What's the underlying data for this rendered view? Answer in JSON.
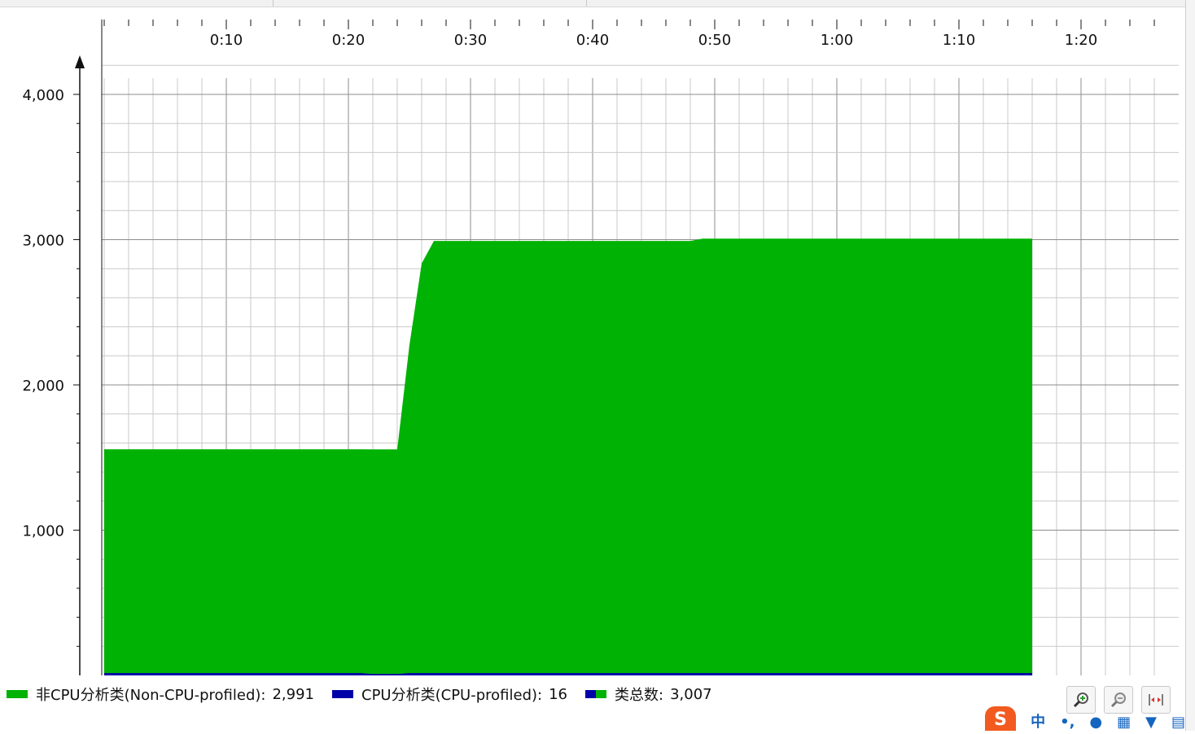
{
  "colors": {
    "non_cpu": "#00b204",
    "cpu": "#0000a8",
    "grid_major": "#8c8c8c",
    "grid_minor": "#c9c9c9"
  },
  "chart_data": {
    "type": "area",
    "stacked": true,
    "x_unit": "m:ss",
    "xlim_seconds": [
      -10,
      86
    ],
    "ylim": [
      0,
      4300
    ],
    "x_ticks": [
      "0:10",
      "0:20",
      "0:30",
      "0:40",
      "0:50",
      "1:00",
      "1:10",
      "1:20"
    ],
    "y_ticks": [
      "1,000",
      "2,000",
      "3,000",
      "4,000"
    ],
    "grid": true,
    "series": [
      {
        "name": "非CPU分析类(Non-CPU-profiled)",
        "color": "#00b204",
        "points": [
          [
            "0:00",
            1541
          ],
          [
            "0:21",
            1541
          ],
          [
            "0:22",
            1546
          ],
          [
            "0:24",
            1546
          ],
          [
            "0:25",
            2260
          ],
          [
            "0:26",
            2820
          ],
          [
            "0:27",
            2975
          ],
          [
            "0:48",
            2975
          ],
          [
            "0:49",
            2991
          ],
          [
            "1:16",
            2991
          ]
        ]
      },
      {
        "name": "CPU分析类(CPU-profiled)",
        "color": "#0000a8",
        "points": [
          [
            "0:00",
            16
          ],
          [
            "0:21",
            16
          ],
          [
            "0:22",
            10
          ],
          [
            "0:24",
            10
          ],
          [
            "0:25",
            16
          ],
          [
            "1:16",
            16
          ]
        ]
      }
    ]
  },
  "legend": {
    "items": [
      {
        "label": "非CPU分析类(Non-CPU-profiled):",
        "value": "2,991"
      },
      {
        "label": "CPU分析类(CPU-profiled):",
        "value": "16"
      },
      {
        "label": "类总数:",
        "value": "3,007"
      }
    ]
  },
  "toolbar": {
    "zoom_in_icon": "zoom-in-icon",
    "zoom_out_icon": "zoom-out-icon",
    "fit_icon": "fit-width-icon"
  },
  "taskbar": {
    "ime_label": "S",
    "ime_mode": "中"
  }
}
